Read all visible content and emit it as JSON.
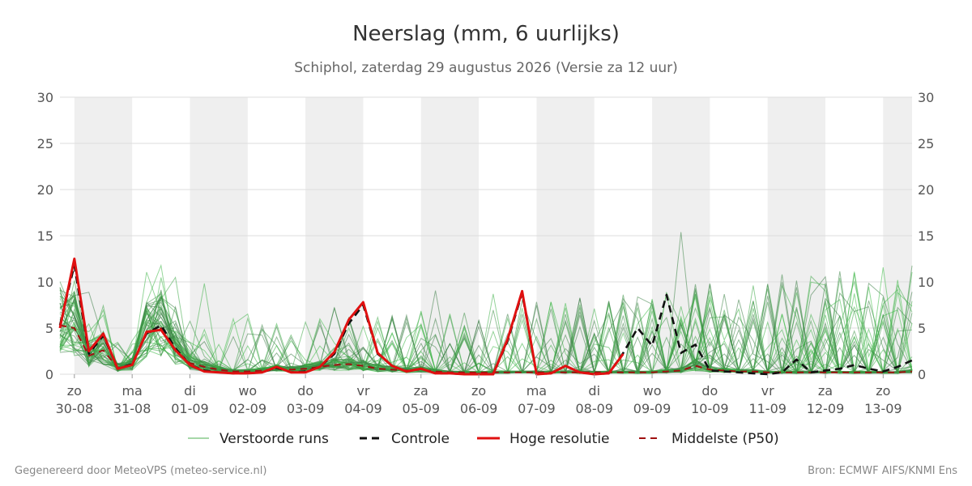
{
  "chart_data": {
    "type": "line",
    "title": "Neerslag (mm, 6 uurlijks)",
    "subtitle": "Schiphol, zaterdag 29 augustus 2026 (Versie za 12 uur)",
    "ylim": [
      0,
      30
    ],
    "yticks": [
      0,
      5,
      10,
      15,
      20,
      25,
      30
    ],
    "x_range_days": [
      -0.25,
      14.5
    ],
    "day_ticks": [
      {
        "x": 0,
        "day": "zo",
        "date": "30-08"
      },
      {
        "x": 1,
        "day": "ma",
        "date": "31-08"
      },
      {
        "x": 2,
        "day": "di",
        "date": "01-09"
      },
      {
        "x": 3,
        "day": "wo",
        "date": "02-09"
      },
      {
        "x": 4,
        "day": "do",
        "date": "03-09"
      },
      {
        "x": 5,
        "day": "vr",
        "date": "04-09"
      },
      {
        "x": 6,
        "day": "za",
        "date": "05-09"
      },
      {
        "x": 7,
        "day": "zo",
        "date": "06-09"
      },
      {
        "x": 8,
        "day": "ma",
        "date": "07-09"
      },
      {
        "x": 9,
        "day": "di",
        "date": "08-09"
      },
      {
        "x": 10,
        "day": "wo",
        "date": "09-09"
      },
      {
        "x": 11,
        "day": "do",
        "date": "10-09"
      },
      {
        "x": 12,
        "day": "vr",
        "date": "11-09"
      },
      {
        "x": 13,
        "day": "za",
        "date": "12-09"
      },
      {
        "x": 14,
        "day": "zo",
        "date": "13-09"
      }
    ],
    "shaded_days": [
      0,
      2,
      4,
      6,
      8,
      10,
      12,
      14
    ],
    "grid": true,
    "legend_position": "bottom",
    "legend": [
      "Verstoorde runs",
      "Controle",
      "Hoge resolutie",
      "Middelste (P50)"
    ],
    "colors": {
      "ensemble": "#4caf50",
      "control": "#111111",
      "hires": "#e01010",
      "median": "#a01010",
      "shade": "#efefef",
      "grid": "#dddddd"
    },
    "ensemble_members": 50,
    "series": [
      {
        "name": "Hoge resolutie",
        "style": "solid",
        "x": [
          -0.25,
          0,
          0.25,
          0.5,
          0.75,
          1,
          1.25,
          1.5,
          1.75,
          2,
          2.25,
          2.5,
          2.75,
          3,
          3.25,
          3.5,
          3.75,
          4,
          4.25,
          4.5,
          4.75,
          5,
          5.25,
          5.5,
          5.75,
          6,
          6.25,
          6.5,
          6.75,
          7,
          7.25,
          7.5,
          7.75,
          8,
          8.25,
          8.5,
          8.75,
          9,
          9.25,
          9.5
        ],
        "values": [
          5.0,
          12.5,
          2.5,
          4.4,
          0.6,
          1.0,
          4.6,
          4.8,
          2.6,
          1.0,
          0.3,
          0.2,
          0.1,
          0.1,
          0.2,
          0.8,
          0.2,
          0.2,
          0.8,
          2.4,
          5.9,
          7.8,
          2.3,
          0.9,
          0.3,
          0.6,
          0.1,
          0.1,
          0.0,
          0.0,
          0.0,
          3.8,
          9.0,
          0.0,
          0.1,
          0.9,
          0.2,
          0.0,
          0.1,
          2.2
        ]
      },
      {
        "name": "Controle",
        "style": "dashed",
        "x": [
          -0.25,
          0,
          0.25,
          0.5,
          0.75,
          1,
          1.25,
          1.5,
          1.75,
          2,
          2.25,
          2.5,
          2.75,
          3,
          3.25,
          3.5,
          3.75,
          4,
          4.25,
          4.5,
          4.75,
          5,
          5.25,
          5.5,
          5.75,
          6,
          6.25,
          6.5,
          6.75,
          7,
          7.25,
          7.5,
          7.75,
          8,
          8.25,
          8.5,
          8.75,
          9,
          9.25,
          9.5,
          9.75,
          10,
          10.25,
          10.5,
          10.75,
          11,
          11.25,
          11.5,
          11.75,
          12,
          12.25,
          12.5,
          12.75,
          13,
          13.25,
          13.5,
          13.75,
          14,
          14.25,
          14.5
        ],
        "values": [
          5.3,
          11.8,
          2.2,
          4.2,
          0.6,
          1.1,
          4.4,
          5.3,
          2.8,
          1.0,
          0.4,
          0.2,
          0.1,
          0.1,
          0.2,
          0.7,
          0.2,
          0.3,
          0.8,
          2.2,
          5.5,
          7.5,
          2.2,
          0.9,
          0.3,
          0.6,
          0.1,
          0.1,
          0.0,
          0.0,
          0.0,
          3.6,
          8.8,
          0.0,
          0.1,
          0.9,
          0.2,
          0.0,
          0.1,
          2.3,
          5.0,
          3.1,
          8.6,
          2.3,
          3.2,
          0.4,
          0.3,
          0.2,
          0.1,
          0.0,
          0.2,
          1.6,
          0.2,
          0.4,
          0.6,
          1.0,
          0.6,
          0.3,
          0.8,
          1.5
        ]
      },
      {
        "name": "Middelste (P50)",
        "style": "dashed",
        "x": [
          -0.25,
          0,
          0.25,
          0.5,
          0.75,
          1,
          1.25,
          1.5,
          1.75,
          2,
          2.25,
          2.5,
          2.75,
          3,
          3.25,
          3.5,
          3.75,
          4,
          4.25,
          4.5,
          4.75,
          5,
          5.25,
          5.5,
          5.75,
          6,
          6.25,
          6.5,
          6.75,
          7,
          7.25,
          7.5,
          7.75,
          8,
          8.25,
          8.5,
          8.75,
          9,
          9.25,
          9.5,
          9.75,
          10,
          10.25,
          10.5,
          10.75,
          11,
          11.25,
          11.5,
          11.75,
          12,
          12.25,
          12.5,
          12.75,
          13,
          13.25,
          13.5,
          13.75,
          14,
          14.25,
          14.5
        ],
        "values": [
          5.3,
          5.0,
          2.0,
          2.6,
          0.7,
          1.0,
          4.4,
          5.0,
          2.6,
          1.2,
          0.8,
          0.5,
          0.3,
          0.3,
          0.4,
          0.6,
          0.5,
          0.6,
          0.8,
          1.0,
          1.1,
          0.9,
          0.6,
          0.5,
          0.4,
          0.5,
          0.3,
          0.2,
          0.2,
          0.2,
          0.2,
          0.2,
          0.2,
          0.2,
          0.2,
          0.2,
          0.2,
          0.2,
          0.2,
          0.2,
          0.2,
          0.2,
          0.3,
          0.4,
          0.9,
          0.5,
          0.4,
          0.3,
          0.3,
          0.2,
          0.2,
          0.2,
          0.2,
          0.2,
          0.2,
          0.2,
          0.2,
          0.2,
          0.2,
          0.3
        ]
      }
    ]
  },
  "footer": {
    "left": "Gegenereerd door MeteoVPS (meteo-service.nl)",
    "right": "Bron: ECMWF AIFS/KNMI Ens"
  }
}
